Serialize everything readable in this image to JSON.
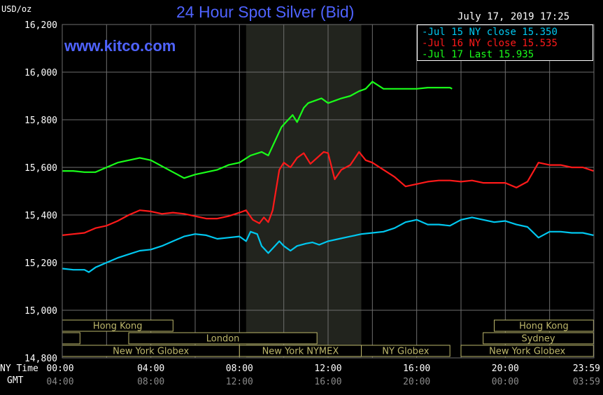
{
  "header": {
    "unit": "USD/oz",
    "title": "24 Hour Spot Silver (Bid)",
    "watermark": "www.kitco.com",
    "timestamp": "July 17, 2019 17:25"
  },
  "footer": {
    "ny_time_label": "NY Time",
    "gmt_label": "GMT"
  },
  "colors": {
    "background": "#000000",
    "grid": "#6e6e6e",
    "title": "#4f63ff",
    "watermark": "#4f63ff",
    "session_box": "#bdb76b",
    "night_shade": "#22241e",
    "jul15": "#00c8f0",
    "jul16": "#ff1a1a",
    "jul17": "#1aff1a"
  },
  "sessions": [
    {
      "name": "Hong Kong",
      "row": 0,
      "start_hour": 0.0,
      "end_hour": 5.0
    },
    {
      "name": "",
      "row": 1,
      "start_hour": 0.0,
      "end_hour": 0.8
    },
    {
      "name": "London",
      "row": 1,
      "start_hour": 3.0,
      "end_hour": 11.5
    },
    {
      "name": "New York Globex",
      "row": 2,
      "start_hour": 0.0,
      "end_hour": 8.0
    },
    {
      "name": "New York NYMEX",
      "row": 2,
      "start_hour": 8.0,
      "end_hour": 13.5
    },
    {
      "name": "NY Globex",
      "row": 2,
      "start_hour": 13.5,
      "end_hour": 17.5
    },
    {
      "name": "Hong Kong",
      "row": 0,
      "start_hour": 19.5,
      "end_hour": 23.98
    },
    {
      "name": "Sydney",
      "row": 1,
      "start_hour": 19.0,
      "end_hour": 23.98
    },
    {
      "name": "New York Globex",
      "row": 2,
      "start_hour": 18.0,
      "end_hour": 23.98
    }
  ],
  "chart_data": {
    "type": "line",
    "title": "24 Hour Spot Silver (Bid)",
    "ylabel": "USD/oz",
    "ylim": [
      14.8,
      16.2
    ],
    "xlim": [
      0,
      24
    ],
    "y_ticks": [
      "16,200",
      "16,000",
      "15,800",
      "15,600",
      "15,400",
      "15,200",
      "15,000",
      "14,800"
    ],
    "x_ticks_ny": [
      "00:00",
      "04:00",
      "08:00",
      "12:00",
      "16:00",
      "20:00",
      "23:59"
    ],
    "x_ticks_gmt": [
      "04:00",
      "08:00",
      "12:00",
      "16:00",
      "20:00",
      "00:00",
      "03:59"
    ],
    "shaded_region": {
      "start_hour": 8.3,
      "end_hour": 13.5
    },
    "legend_position": "top-right",
    "series": [
      {
        "name": "Jul 15 NY close 15.350",
        "color_key": "jul15",
        "x": [
          0,
          0.5,
          1.0,
          1.2,
          1.5,
          2.0,
          2.5,
          3.0,
          3.5,
          4.0,
          4.5,
          5.0,
          5.5,
          6.0,
          6.5,
          7.0,
          7.5,
          8.0,
          8.3,
          8.5,
          8.8,
          9.0,
          9.3,
          9.6,
          9.8,
          10.0,
          10.3,
          10.6,
          11.0,
          11.3,
          11.6,
          12.0,
          12.5,
          13.0,
          13.5,
          14.0,
          14.5,
          15.0,
          15.5,
          16.0,
          16.5,
          17.0,
          17.5,
          18.0,
          18.5,
          19.0,
          19.5,
          20.0,
          20.5,
          21.0,
          21.5,
          22.0,
          22.5,
          23.0,
          23.5,
          23.98
        ],
        "y": [
          15.175,
          15.17,
          15.17,
          15.16,
          15.18,
          15.2,
          15.22,
          15.235,
          15.25,
          15.255,
          15.27,
          15.29,
          15.31,
          15.32,
          15.315,
          15.3,
          15.305,
          15.31,
          15.29,
          15.33,
          15.32,
          15.27,
          15.24,
          15.27,
          15.29,
          15.27,
          15.25,
          15.27,
          15.28,
          15.285,
          15.275,
          15.29,
          15.3,
          15.31,
          15.32,
          15.325,
          15.33,
          15.345,
          15.37,
          15.38,
          15.36,
          15.36,
          15.355,
          15.38,
          15.39,
          15.38,
          15.37,
          15.375,
          15.36,
          15.35,
          15.305,
          15.33,
          15.33,
          15.325,
          15.325,
          15.315
        ]
      },
      {
        "name": "Jul 16 NY close 15.535",
        "color_key": "jul16",
        "x": [
          0,
          0.5,
          1.0,
          1.5,
          2.0,
          2.5,
          3.0,
          3.5,
          4.0,
          4.5,
          5.0,
          5.5,
          6.0,
          6.5,
          7.0,
          7.5,
          8.0,
          8.3,
          8.6,
          8.9,
          9.1,
          9.3,
          9.5,
          9.8,
          10.0,
          10.3,
          10.6,
          10.9,
          11.2,
          11.5,
          11.8,
          12.0,
          12.3,
          12.6,
          13.0,
          13.4,
          13.7,
          14.0,
          14.5,
          15.0,
          15.5,
          16.0,
          16.5,
          17.0,
          17.5,
          18.0,
          18.5,
          19.0,
          19.5,
          20.0,
          20.5,
          21.0,
          21.5,
          22.0,
          22.5,
          23.0,
          23.5,
          23.98
        ],
        "y": [
          15.315,
          15.32,
          15.325,
          15.345,
          15.355,
          15.375,
          15.4,
          15.42,
          15.415,
          15.405,
          15.41,
          15.405,
          15.395,
          15.385,
          15.385,
          15.395,
          15.41,
          15.42,
          15.38,
          15.365,
          15.39,
          15.37,
          15.42,
          15.59,
          15.62,
          15.6,
          15.64,
          15.66,
          15.615,
          15.64,
          15.665,
          15.66,
          15.55,
          15.59,
          15.61,
          15.665,
          15.63,
          15.62,
          15.59,
          15.56,
          15.52,
          15.53,
          15.54,
          15.545,
          15.545,
          15.54,
          15.545,
          15.535,
          15.535,
          15.535,
          15.515,
          15.54,
          15.62,
          15.61,
          15.61,
          15.6,
          15.6,
          15.585
        ]
      },
      {
        "name": "Jul 17 Last 15.935",
        "color_key": "jul17",
        "x": [
          0,
          0.5,
          1.0,
          1.5,
          2.0,
          2.5,
          3.0,
          3.5,
          4.0,
          4.5,
          5.0,
          5.5,
          6.0,
          6.5,
          7.0,
          7.5,
          8.0,
          8.5,
          9.0,
          9.3,
          9.6,
          9.9,
          10.1,
          10.4,
          10.6,
          10.9,
          11.1,
          11.4,
          11.7,
          12.0,
          12.3,
          12.6,
          13.0,
          13.4,
          13.7,
          14.0,
          14.5,
          15.0,
          15.5,
          16.0,
          16.5,
          17.0,
          17.5,
          17.6
        ],
        "y": [
          15.585,
          15.585,
          15.58,
          15.58,
          15.6,
          15.62,
          15.63,
          15.64,
          15.63,
          15.605,
          15.58,
          15.555,
          15.57,
          15.58,
          15.59,
          15.61,
          15.62,
          15.65,
          15.665,
          15.65,
          15.71,
          15.77,
          15.79,
          15.82,
          15.79,
          15.85,
          15.87,
          15.88,
          15.89,
          15.87,
          15.88,
          15.89,
          15.9,
          15.92,
          15.93,
          15.96,
          15.93,
          15.93,
          15.93,
          15.93,
          15.935,
          15.935,
          15.935,
          15.93
        ]
      }
    ]
  }
}
